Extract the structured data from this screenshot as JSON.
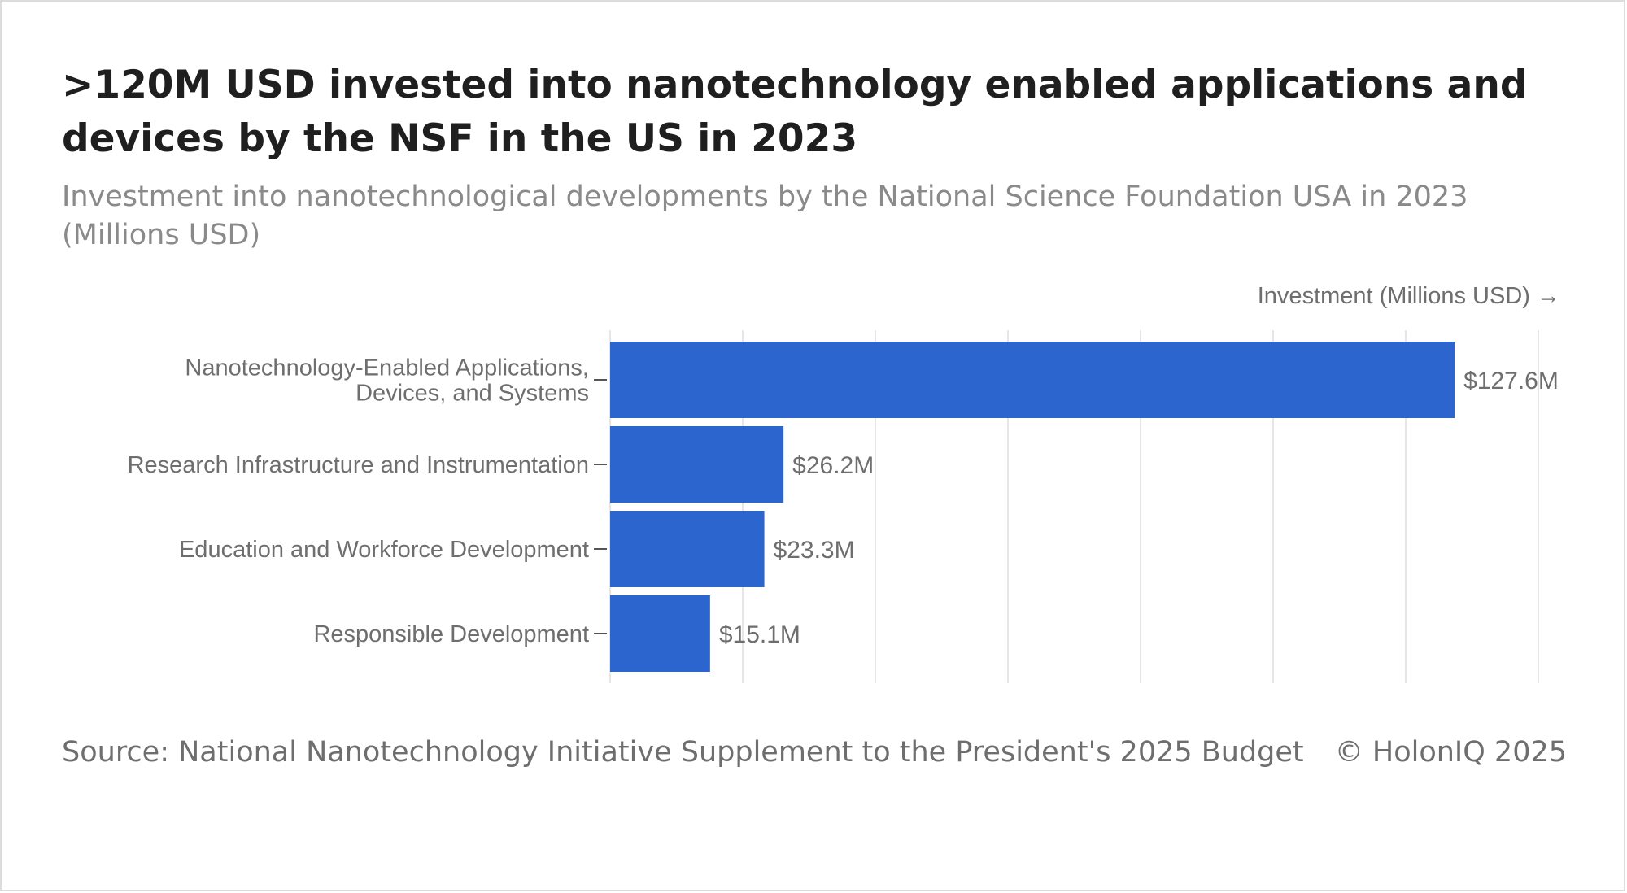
{
  "header": {
    "title": ">120M USD invested into nanotechnology enabled applications and devices by the NSF in the US in 2023",
    "subtitle": "Investment into nanotechnological developments by the National Science Foundation USA in 2023 (Millions USD)"
  },
  "footer": {
    "source": "Source: National Nanotechnology Initiative Supplement to the President's 2025 Budget",
    "copyright": "© HolonIQ 2025"
  },
  "colors": {
    "bar": "#2b65cd",
    "grid": "#e6e6e6",
    "label": "#6e6e6e",
    "title": "#1f1f1f"
  },
  "chart_data": {
    "type": "bar",
    "orientation": "horizontal",
    "title": ">120M USD invested into nanotechnology enabled applications and devices by the NSF in the US in 2023",
    "subtitle": "Investment into nanotechnological developments by the National Science Foundation USA in 2023 (Millions USD)",
    "xlabel": "Investment (Millions USD) →",
    "ylabel": "",
    "categories": [
      [
        "Nanotechnology-Enabled Applications,",
        "Devices, and Systems"
      ],
      [
        "Research Infrastructure and Instrumentation"
      ],
      [
        "Education and Workforce Development"
      ],
      [
        "Responsible Development"
      ]
    ],
    "values": [
      127.6,
      26.2,
      23.3,
      15.1
    ],
    "data_labels": [
      "$127.6M",
      "$26.2M",
      "$23.3M",
      "$15.1M"
    ],
    "xlim": [
      0,
      140
    ],
    "grid": true,
    "legend": "none"
  }
}
